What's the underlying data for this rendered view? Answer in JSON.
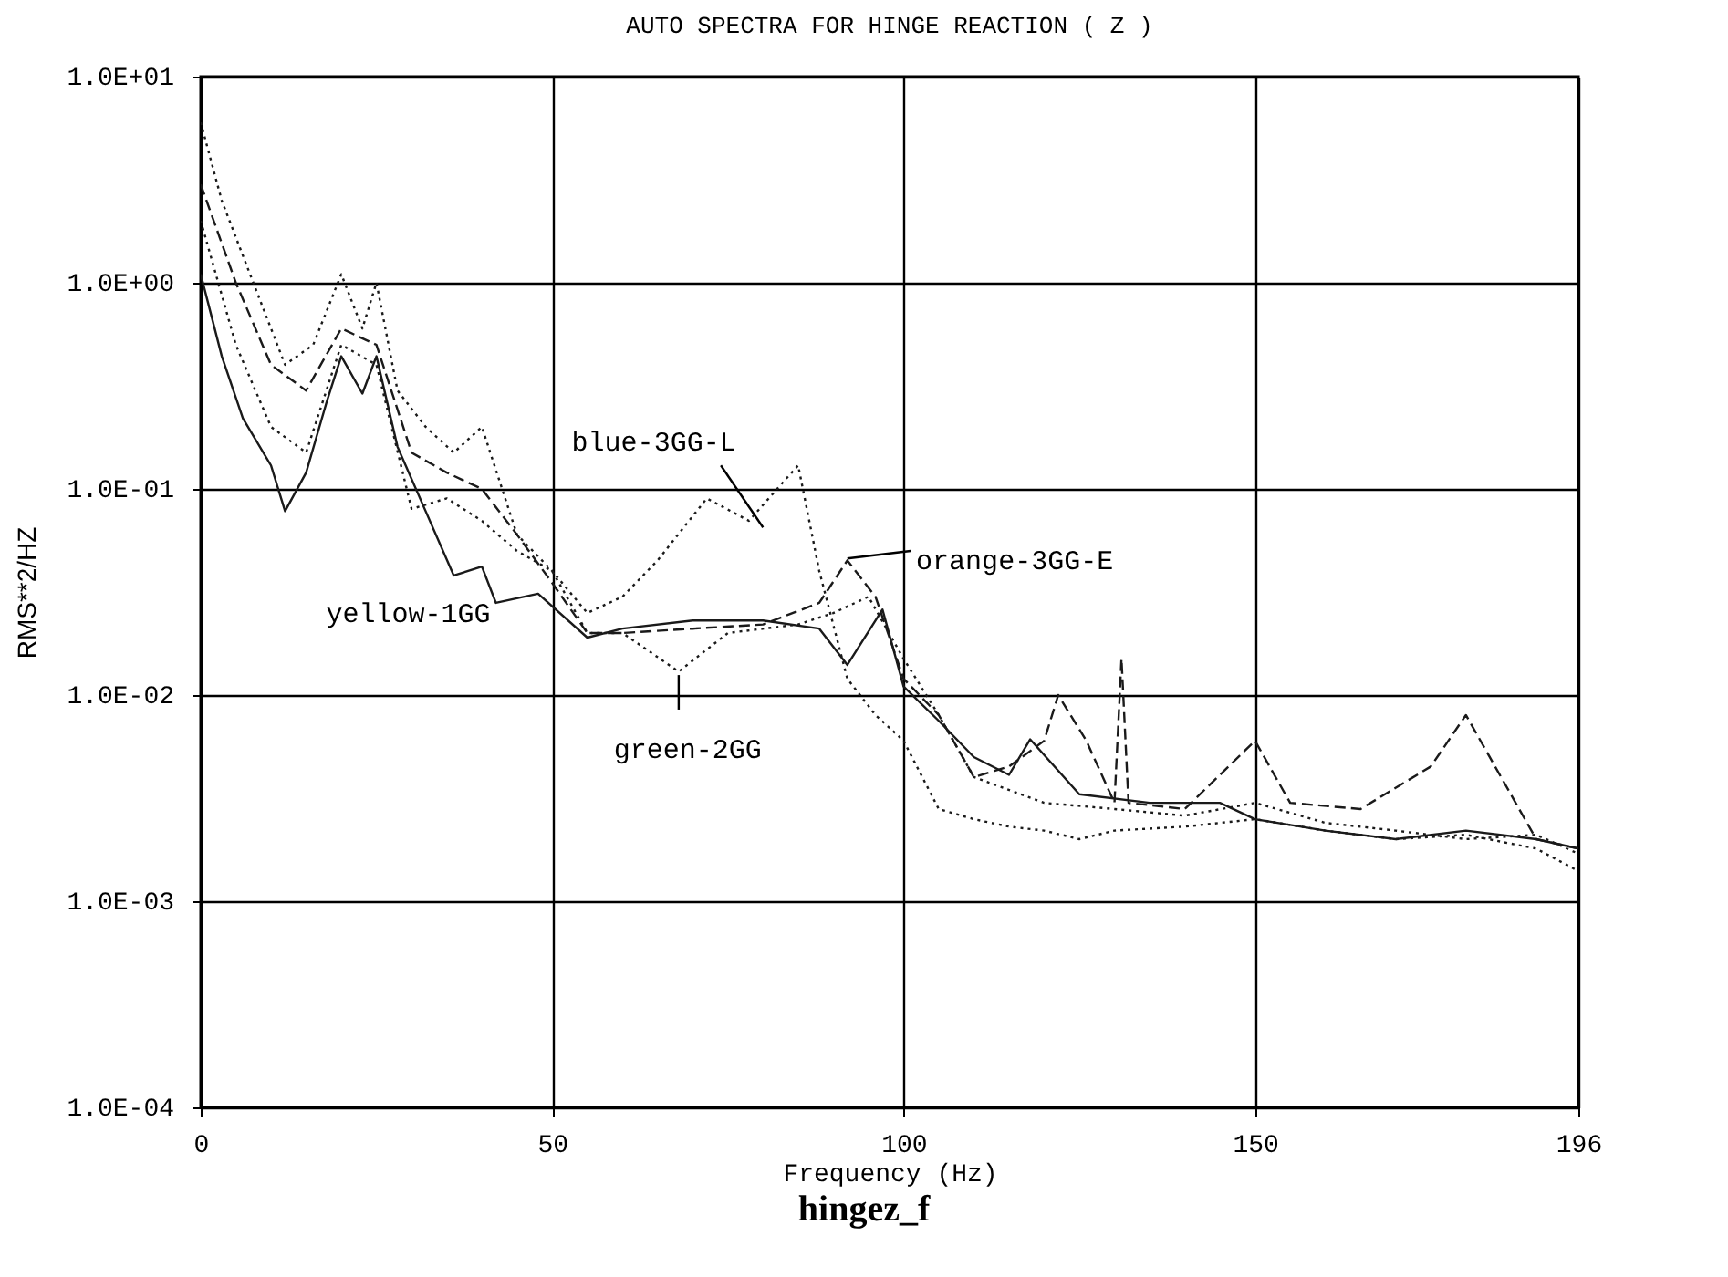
{
  "chart_data": {
    "type": "line",
    "title": "AUTO SPECTRA FOR HINGE REACTION ( Z )",
    "xlabel": "Frequency (Hz)",
    "ylabel": "RMS**2/HZ",
    "annotations": [
      "hingez_f"
    ],
    "log": "y",
    "grid": true,
    "legend": false,
    "xlim": [
      0,
      196
    ],
    "xticks": [
      0,
      50,
      100,
      150,
      196
    ],
    "ylim": [
      0.0001,
      10
    ],
    "yticks": [
      {
        "value": 10,
        "label": "1.0E+01"
      },
      {
        "value": 1,
        "label": "1.0E+00"
      },
      {
        "value": 0.1,
        "label": "1.0E-01"
      },
      {
        "value": 0.01,
        "label": "1.0E-02"
      },
      {
        "value": 0.001,
        "label": "1.0E-03"
      },
      {
        "value": 0.0001,
        "label": "1.0E-04"
      }
    ],
    "series": [
      {
        "name": "yellow-1GG",
        "color": "#1a1a1a",
        "line_style": "solid",
        "x": [
          0,
          3,
          6,
          10,
          12,
          15,
          18,
          20,
          23,
          25,
          28,
          32,
          36,
          40,
          42,
          48,
          55,
          60,
          70,
          80,
          88,
          92,
          97,
          100,
          105,
          110,
          115,
          118,
          125,
          135,
          145,
          150,
          160,
          170,
          180,
          190,
          196
        ],
        "values": [
          1.1,
          0.44,
          0.22,
          0.13,
          0.078,
          0.12,
          0.27,
          0.44,
          0.29,
          0.44,
          0.16,
          0.078,
          0.038,
          0.042,
          0.028,
          0.031,
          0.019,
          0.021,
          0.023,
          0.023,
          0.021,
          0.014,
          0.026,
          0.011,
          0.0075,
          0.005,
          0.0041,
          0.0061,
          0.0033,
          0.003,
          0.003,
          0.0025,
          0.0022,
          0.002,
          0.0022,
          0.002,
          0.0018
        ]
      },
      {
        "name": "green-2GG",
        "color": "#1a1a1a",
        "line_style": "dotted",
        "x": [
          0,
          5,
          10,
          15,
          20,
          25,
          30,
          35,
          40,
          45,
          50,
          55,
          60,
          68,
          75,
          85,
          90,
          95,
          100,
          105,
          110,
          120,
          130,
          140,
          150,
          160,
          170,
          180,
          190,
          196
        ],
        "values": [
          2.0,
          0.5,
          0.2,
          0.15,
          0.5,
          0.4,
          0.08,
          0.09,
          0.07,
          0.05,
          0.04,
          0.02,
          0.02,
          0.013,
          0.02,
          0.022,
          0.025,
          0.03,
          0.015,
          0.008,
          0.004,
          0.003,
          0.0028,
          0.0026,
          0.003,
          0.0024,
          0.0022,
          0.002,
          0.0021,
          0.0017
        ]
      },
      {
        "name": "blue-3GG-L",
        "color": "#1a1a1a",
        "line_style": "dotted",
        "x": [
          0,
          3,
          8,
          12,
          16,
          20,
          23,
          25,
          28,
          32,
          36,
          40,
          45,
          50,
          55,
          60,
          65,
          72,
          78,
          82,
          85,
          88,
          92,
          96,
          100,
          105,
          110,
          115,
          120,
          125,
          130,
          140,
          150,
          160,
          170,
          180,
          190,
          196
        ],
        "values": [
          6,
          2.5,
          0.9,
          0.4,
          0.5,
          1.1,
          0.6,
          1.0,
          0.3,
          0.2,
          0.15,
          0.2,
          0.06,
          0.04,
          0.025,
          0.03,
          0.045,
          0.09,
          0.07,
          0.1,
          0.13,
          0.04,
          0.012,
          0.008,
          0.006,
          0.0028,
          0.0025,
          0.0023,
          0.0022,
          0.002,
          0.0022,
          0.0023,
          0.0025,
          0.0022,
          0.002,
          0.0021,
          0.0018,
          0.0014
        ]
      },
      {
        "name": "orange-3GG-E",
        "color": "#1a1a1a",
        "line_style": "dashed",
        "x": [
          0,
          5,
          10,
          15,
          20,
          25,
          30,
          35,
          40,
          45,
          50,
          55,
          60,
          70,
          80,
          88,
          92,
          96,
          100,
          105,
          110,
          115,
          120,
          122,
          126,
          130,
          131,
          132,
          140,
          150,
          155,
          165,
          175,
          180,
          185,
          190,
          196
        ],
        "values": [
          3,
          1.0,
          0.4,
          0.3,
          0.6,
          0.5,
          0.15,
          0.12,
          0.1,
          0.06,
          0.035,
          0.02,
          0.02,
          0.021,
          0.022,
          0.028,
          0.045,
          0.03,
          0.012,
          0.008,
          0.004,
          0.0045,
          0.006,
          0.01,
          0.006,
          0.003,
          0.015,
          0.003,
          0.0028,
          0.006,
          0.003,
          0.0028,
          0.0045,
          0.008,
          0.004,
          0.002,
          0.0018
        ]
      }
    ]
  }
}
